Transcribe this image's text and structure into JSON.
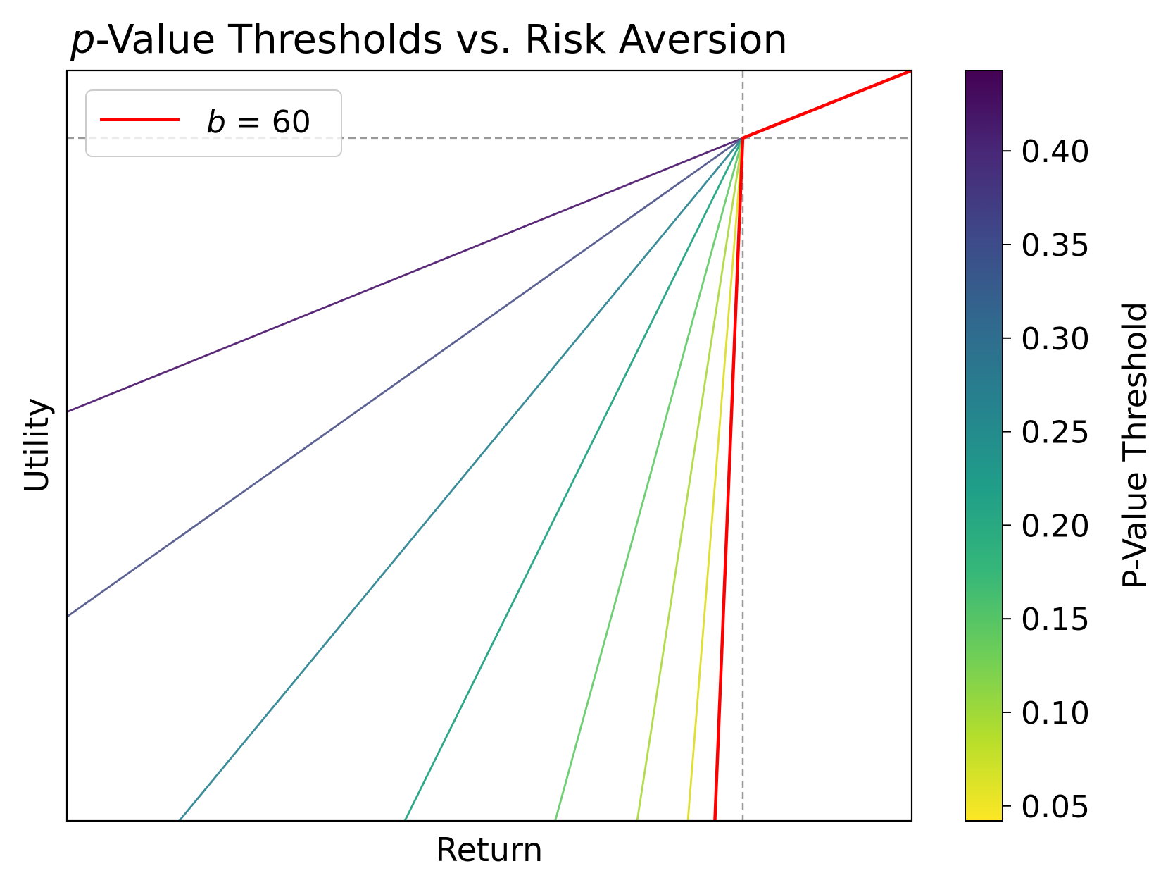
{
  "chart_data": {
    "type": "line",
    "title_italic_part": "p",
    "title_rest": "-Value Thresholds vs. Risk Aversion",
    "xlabel": "Return",
    "ylabel": "Utility",
    "x_ticks_shown": false,
    "y_ticks_shown": false,
    "xlim": [
      0,
      1
    ],
    "ylim": [
      0,
      1
    ],
    "kink": {
      "x": 0.8,
      "y": 0.91
    },
    "reference_lines": {
      "style": "dashed",
      "color": "#999999",
      "vertical_x": 0.8,
      "horizontal_y": 0.91
    },
    "series": [
      {
        "p_value": 0.42,
        "color": "#5a2a79",
        "points": [
          [
            0,
            0.545
          ],
          [
            0.8,
            0.91
          ]
        ]
      },
      {
        "p_value": 0.35,
        "color": "#5c6393",
        "points": [
          [
            0,
            0.272
          ],
          [
            0.8,
            0.91
          ]
        ]
      },
      {
        "p_value": 0.28,
        "color": "#3c8d9a",
        "points": [
          [
            0.133,
            0
          ],
          [
            0.8,
            0.91
          ]
        ]
      },
      {
        "p_value": 0.21,
        "color": "#2ea889",
        "points": [
          [
            0.4,
            0
          ],
          [
            0.8,
            0.91
          ]
        ]
      },
      {
        "p_value": 0.15,
        "color": "#70cf75",
        "points": [
          [
            0.578,
            0
          ],
          [
            0.8,
            0.91
          ]
        ]
      },
      {
        "p_value": 0.1,
        "color": "#b3dc4d",
        "points": [
          [
            0.675,
            0
          ],
          [
            0.8,
            0.91
          ]
        ]
      },
      {
        "p_value": 0.06,
        "color": "#dfe033",
        "points": [
          [
            0.735,
            0
          ],
          [
            0.8,
            0.91
          ]
        ]
      },
      {
        "name": "b = 60",
        "color": "#ff0000",
        "highlight": true,
        "points": [
          [
            0.767,
            0
          ],
          [
            0.8,
            0.91
          ],
          [
            1.0,
            1.0
          ]
        ]
      }
    ],
    "legend": {
      "placement": "top-left",
      "entries": [
        {
          "label_italic": "b",
          "label_rest": " = 60",
          "color": "#ff0000"
        }
      ]
    },
    "colorbar": {
      "label": "P-Value Threshold",
      "colormap": "viridis_r",
      "range": [
        0.042,
        0.443
      ],
      "ticks": [
        "0.05",
        "0.10",
        "0.15",
        "0.20",
        "0.25",
        "0.30",
        "0.35",
        "0.40"
      ],
      "stops": [
        "#fde725",
        "#b5de2b",
        "#6ece58",
        "#35b779",
        "#1f9e89",
        "#26828e",
        "#31688e",
        "#3e4989",
        "#482878",
        "#440154"
      ]
    }
  }
}
